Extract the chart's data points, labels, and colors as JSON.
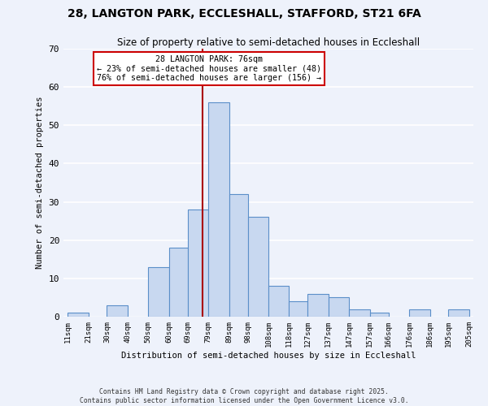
{
  "title": "28, LANGTON PARK, ECCLESHALL, STAFFORD, ST21 6FA",
  "subtitle": "Size of property relative to semi-detached houses in Eccleshall",
  "xlabel": "Distribution of semi-detached houses by size in Eccleshall",
  "ylabel": "Number of semi-detached properties",
  "bin_labels": [
    "11sqm",
    "21sqm",
    "30sqm",
    "40sqm",
    "50sqm",
    "60sqm",
    "69sqm",
    "79sqm",
    "89sqm",
    "98sqm",
    "108sqm",
    "118sqm",
    "127sqm",
    "137sqm",
    "147sqm",
    "157sqm",
    "166sqm",
    "176sqm",
    "186sqm",
    "195sqm",
    "205sqm"
  ],
  "bin_edges": [
    11,
    21,
    30,
    40,
    50,
    60,
    69,
    79,
    89,
    98,
    108,
    118,
    127,
    137,
    147,
    157,
    166,
    176,
    186,
    195,
    205
  ],
  "bar_heights": [
    1,
    0,
    3,
    0,
    13,
    18,
    28,
    56,
    32,
    26,
    8,
    4,
    6,
    5,
    2,
    1,
    0,
    2,
    0,
    2
  ],
  "bar_color": "#c8d8f0",
  "bar_edge_color": "#5b8fc9",
  "vline_x": 76,
  "vline_color": "#aa0000",
  "annotation_text": "28 LANGTON PARK: 76sqm\n← 23% of semi-detached houses are smaller (48)\n76% of semi-detached houses are larger (156) →",
  "annotation_box_color": "#ffffff",
  "annotation_box_edge": "#cc0000",
  "ylim": [
    0,
    70
  ],
  "yticks": [
    0,
    10,
    20,
    30,
    40,
    50,
    60,
    70
  ],
  "background_color": "#eef2fb",
  "grid_color": "#ffffff",
  "footer_line1": "Contains HM Land Registry data © Crown copyright and database right 2025.",
  "footer_line2": "Contains public sector information licensed under the Open Government Licence v3.0."
}
